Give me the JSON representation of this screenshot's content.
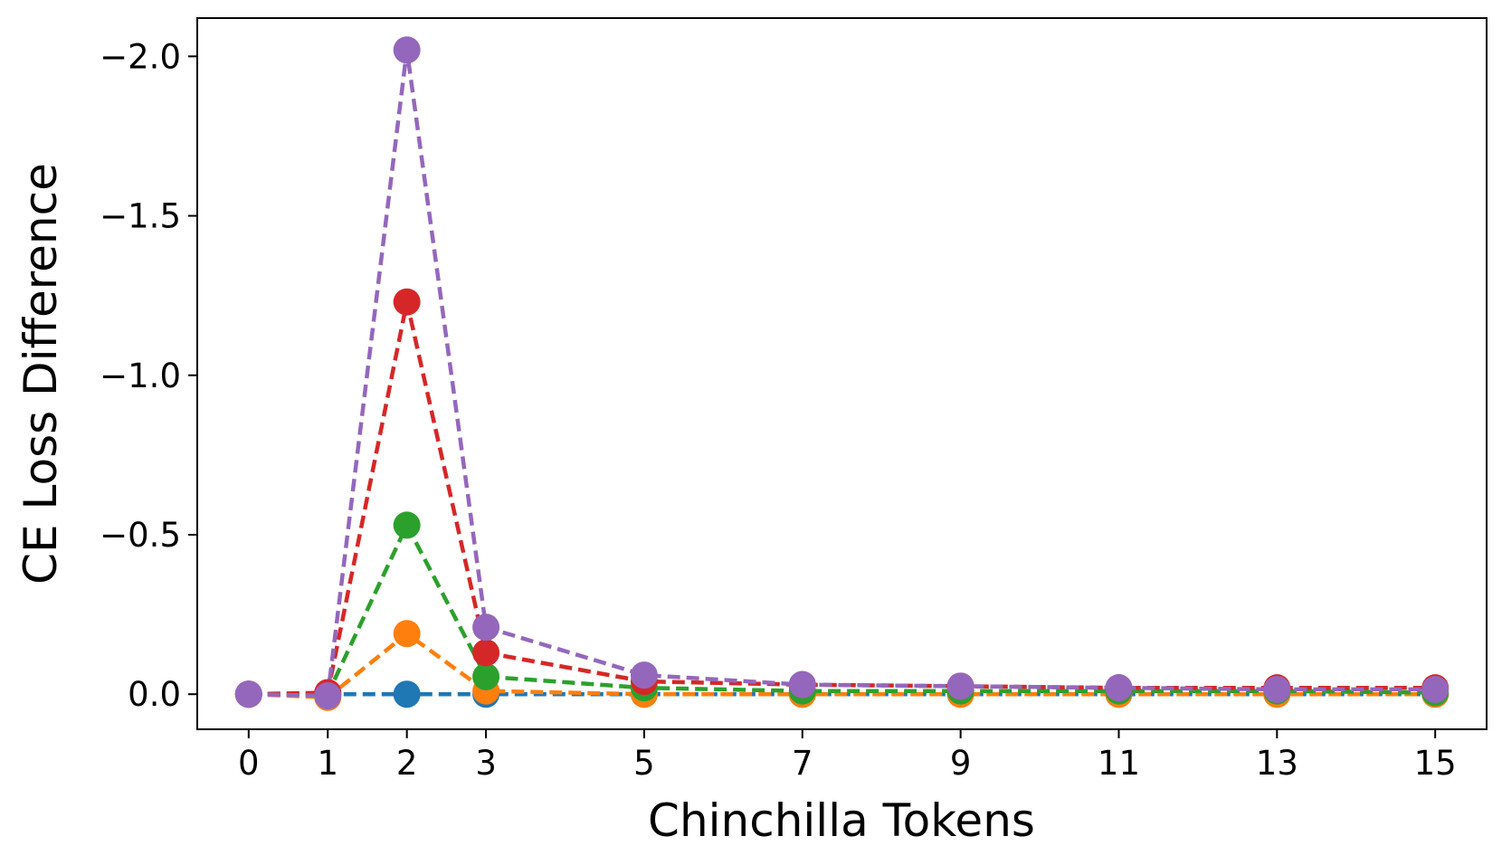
{
  "chart_data": {
    "type": "line",
    "title": "",
    "xlabel": "Chinchilla Tokens",
    "ylabel": "CE Loss Difference",
    "x": [
      0,
      1,
      2,
      3,
      5,
      7,
      9,
      11,
      13,
      15
    ],
    "xticks": [
      "0",
      "1",
      "2",
      "3",
      "5",
      "7",
      "9",
      "11",
      "13",
      "15"
    ],
    "yticks": [
      {
        "value": -2.0,
        "label": "−2.0"
      },
      {
        "value": -1.5,
        "label": "−1.5"
      },
      {
        "value": -1.0,
        "label": "−1.0"
      },
      {
        "value": -0.5,
        "label": "−0.5"
      },
      {
        "value": 0.0,
        "label": "0.0"
      }
    ],
    "ylim": [
      0.11,
      -2.12
    ],
    "y_inverted": true,
    "grid": false,
    "series": [
      {
        "color": "#1f77b4",
        "values": [
          0,
          0,
          0,
          0,
          0,
          0,
          0,
          0,
          0,
          0
        ]
      },
      {
        "color": "#ff7f0e",
        "values": [
          0,
          0.01,
          -0.19,
          -0.01,
          0.0,
          0.0,
          0.0,
          0.0,
          0.0,
          0.0
        ]
      },
      {
        "color": "#2ca02c",
        "values": [
          0,
          0.0,
          -0.53,
          -0.055,
          -0.02,
          -0.01,
          -0.01,
          -0.01,
          -0.01,
          -0.005
        ]
      },
      {
        "color": "#d62728",
        "values": [
          0,
          -0.005,
          -1.23,
          -0.13,
          -0.04,
          -0.03,
          -0.025,
          -0.02,
          -0.02,
          -0.02
        ]
      },
      {
        "color": "#9467bd",
        "values": [
          0,
          0.005,
          -2.02,
          -0.21,
          -0.06,
          -0.03,
          -0.025,
          -0.02,
          -0.015,
          -0.015
        ]
      }
    ]
  }
}
